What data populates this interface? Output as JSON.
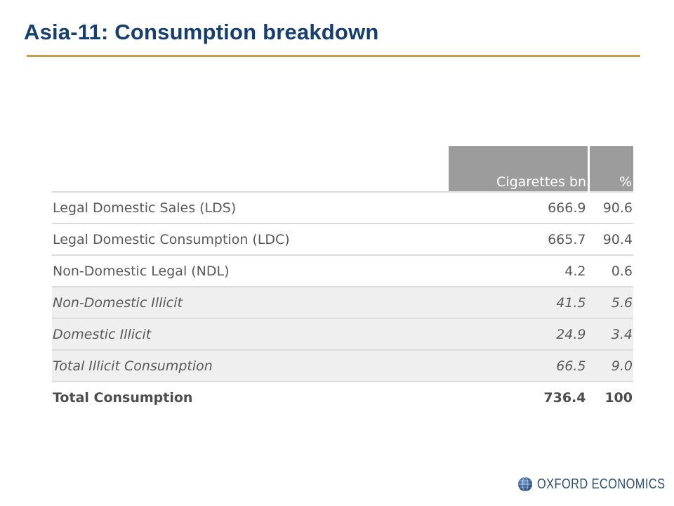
{
  "title": "Asia-11: Consumption breakdown",
  "table": {
    "headers": [
      "",
      "Cigarettes bn",
      "%"
    ],
    "rows": [
      {
        "label": "Legal Domestic Sales (LDS)",
        "cigarettes_bn": "666.9",
        "pct": "90.6"
      },
      {
        "label": "Legal Domestic Consumption (LDC)",
        "cigarettes_bn": "665.7",
        "pct": "90.4"
      },
      {
        "label": "Non-Domestic Legal (NDL)",
        "cigarettes_bn": "4.2",
        "pct": "0.6"
      },
      {
        "label": "Non-Domestic Illicit",
        "cigarettes_bn": "41.5",
        "pct": "5.6"
      },
      {
        "label": "Domestic Illicit",
        "cigarettes_bn": "24.9",
        "pct": "3.4"
      },
      {
        "label": "Total Illicit Consumption",
        "cigarettes_bn": "66.5",
        "pct": "9.0"
      },
      {
        "label": "Total Consumption",
        "cigarettes_bn": "736.4",
        "pct": "100"
      }
    ]
  },
  "logo": {
    "text": "OXFORD ECONOMICS",
    "icon": "globe-icon"
  },
  "colors": {
    "title": "#163e6e",
    "rule": "#c4a04a",
    "header_bg": "#9c9c9c",
    "shaded_row": "#efefef"
  }
}
